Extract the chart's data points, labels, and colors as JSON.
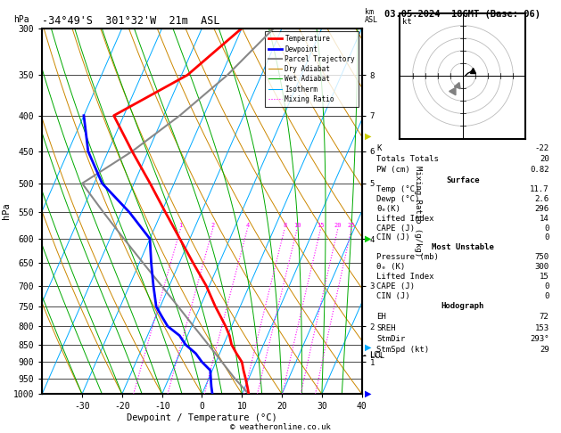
{
  "title_left": "-34°49'S  301°32'W  21m  ASL",
  "title_right": "03.05.2024  18GMT (Base: 06)",
  "xlabel": "Dewpoint / Temperature (°C)",
  "ylabel_left": "hPa",
  "ylabel_right_km": "km\nASL",
  "ylabel_right_mix": "Mixing Ratio (g/kg)",
  "pressure_levels": [
    300,
    350,
    400,
    450,
    500,
    550,
    600,
    650,
    700,
    750,
    800,
    850,
    900,
    950,
    1000
  ],
  "temp_range_display": [
    -40,
    40
  ],
  "skew_factor": 40,
  "background_color": "#ffffff",
  "temp_profile": {
    "pressure": [
      1000,
      975,
      950,
      925,
      900,
      875,
      850,
      825,
      800,
      775,
      750,
      700,
      650,
      600,
      550,
      500,
      450,
      400,
      350,
      300
    ],
    "temp": [
      11.7,
      10.5,
      9.2,
      7.8,
      6.5,
      4.2,
      2.0,
      0.5,
      -1.5,
      -3.8,
      -6.2,
      -10.8,
      -16.5,
      -22.5,
      -29.0,
      -36.0,
      -44.0,
      -52.5,
      -38.5,
      -30.0
    ],
    "color": "#ff0000",
    "linewidth": 2.0
  },
  "dewpoint_profile": {
    "pressure": [
      1000,
      975,
      950,
      925,
      900,
      875,
      850,
      825,
      800,
      775,
      750,
      700,
      650,
      600,
      550,
      500,
      450,
      400
    ],
    "dewp": [
      2.6,
      1.5,
      0.5,
      -0.5,
      -3.5,
      -6.0,
      -9.5,
      -12.0,
      -16.0,
      -18.5,
      -21.0,
      -24.0,
      -27.0,
      -30.0,
      -38.0,
      -48.0,
      -55.0,
      -60.0
    ],
    "color": "#0000ff",
    "linewidth": 2.0
  },
  "parcel_trajectory": {
    "pressure": [
      1000,
      950,
      900,
      850,
      800,
      750,
      700,
      650,
      600,
      550,
      500,
      450,
      400,
      350,
      300
    ],
    "temp": [
      11.7,
      6.5,
      1.5,
      -3.8,
      -9.5,
      -15.5,
      -22.0,
      -29.0,
      -36.5,
      -44.5,
      -53.0,
      -44.0,
      -36.0,
      -28.5,
      -22.0
    ],
    "color": "#888888",
    "linewidth": 1.5
  },
  "stats": {
    "K": -22,
    "Totals_Totals": 20,
    "PW_cm": 0.82,
    "Surface_Temp": 11.7,
    "Surface_Dewp": 2.6,
    "Surface_theta_e": 296,
    "Surface_LI": 14,
    "Surface_CAPE": 0,
    "Surface_CIN": 0,
    "MU_Pressure": 750,
    "MU_theta_e": 300,
    "MU_LI": 15,
    "MU_CAPE": 0,
    "MU_CIN": 0,
    "EH": 72,
    "SREH": 153,
    "StmDir": 293,
    "StmSpd": 29
  },
  "legend_items": [
    {
      "label": "Temperature",
      "color": "#ff0000",
      "lw": 2.0,
      "ls": "-"
    },
    {
      "label": "Dewpoint",
      "color": "#0000ff",
      "lw": 2.0,
      "ls": "-"
    },
    {
      "label": "Parcel Trajectory",
      "color": "#888888",
      "lw": 1.5,
      "ls": "-"
    },
    {
      "label": "Dry Adiabat",
      "color": "#cc8800",
      "lw": 0.8,
      "ls": "-"
    },
    {
      "label": "Wet Adiabat",
      "color": "#00aa00",
      "lw": 0.8,
      "ls": "-"
    },
    {
      "label": "Isotherm",
      "color": "#00aaff",
      "lw": 0.8,
      "ls": "-"
    },
    {
      "label": "Mixing Ratio",
      "color": "#ff00ff",
      "lw": 0.8,
      "ls": ":"
    }
  ],
  "mixing_ratio_values": [
    1,
    2,
    4,
    8,
    10,
    15,
    20,
    25
  ],
  "mixing_ratio_color": "#ff00ff",
  "isotherm_color": "#00aaff",
  "dry_adiabat_color": "#cc8800",
  "wet_adiabat_color": "#00aa00",
  "copyright": "© weatheronline.co.uk",
  "lcl_pressure": 880,
  "wind_barb_colors": [
    "#ff0000",
    "#ff8800",
    "#cc00cc",
    "#0000ff",
    "#00aaff",
    "#00cc00",
    "#cccc00"
  ],
  "wind_barb_pressures": [
    150,
    200,
    250,
    300,
    350,
    500,
    700
  ]
}
